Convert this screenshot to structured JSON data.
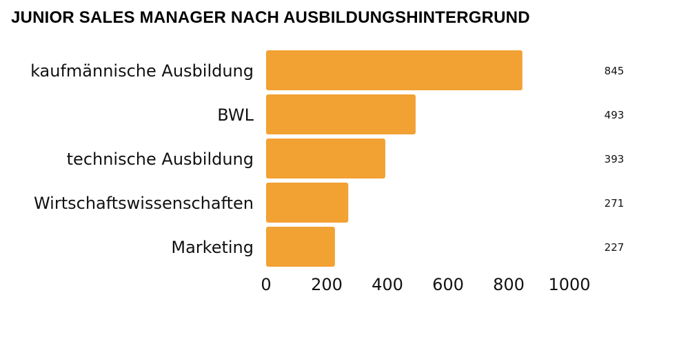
{
  "chart_data": {
    "type": "bar",
    "orientation": "horizontal",
    "title": "JUNIOR SALES MANAGER NACH AUSBILDUNGSHINTERGRUND",
    "categories": [
      "kaufmännische Ausbildung",
      "BWL",
      "technische Ausbildung",
      "Wirtschaftswissenschaften",
      "Marketing"
    ],
    "values": [
      845,
      493,
      393,
      271,
      227
    ],
    "data_labels": [
      "845",
      "493",
      "393",
      "271",
      "227"
    ],
    "xlim": [
      0,
      1000
    ],
    "xticks": [
      "0",
      "200",
      "400",
      "600",
      "800",
      "1000"
    ],
    "xlabel": "",
    "ylabel": "",
    "grid": false,
    "bar_color": "#F2A133"
  }
}
